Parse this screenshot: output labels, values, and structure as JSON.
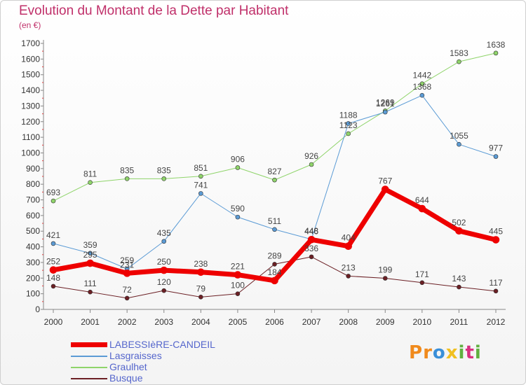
{
  "title": "Evolution du Montant de la Dette par Habitant",
  "subtitle": "(en €)",
  "logo": {
    "letters": [
      "P",
      "r",
      "o",
      "x",
      "i",
      "t",
      "i"
    ],
    "colors": [
      "#f08a1c",
      "#f08a1c",
      "#3a8fd8",
      "#f0c020",
      "#60b040",
      "#d83080",
      "#60b040"
    ]
  },
  "chart_data": {
    "type": "line",
    "x": [
      "2000",
      "2001",
      "2002",
      "2003",
      "2004",
      "2005",
      "2006",
      "2007",
      "2008",
      "2009",
      "2010",
      "2011",
      "2012"
    ],
    "ylim": [
      0,
      1700
    ],
    "yticks": [
      0,
      100,
      200,
      300,
      400,
      500,
      600,
      700,
      800,
      900,
      1000,
      1100,
      1200,
      1300,
      1400,
      1500,
      1600,
      1700
    ],
    "grid": false,
    "legend_position": "bottom-left",
    "series": [
      {
        "name": "Busque",
        "color": "#6b1f24",
        "width": 1,
        "values": [
          148,
          111,
          72,
          120,
          79,
          100,
          289,
          336,
          213,
          199,
          171,
          143,
          117
        ]
      },
      {
        "name": "Graulhet",
        "color": "#8fd46a",
        "width": 1,
        "values": [
          693,
          811,
          835,
          835,
          851,
          906,
          827,
          926,
          1123,
          1269,
          1442,
          1583,
          1638
        ]
      },
      {
        "name": "Lasgraisses",
        "color": "#5b9bd5",
        "width": 1,
        "values": [
          421,
          359,
          259,
          435,
          741,
          590,
          511,
          448,
          1188,
          1261,
          1368,
          1055,
          977
        ]
      },
      {
        "name": "LABESSIèRE-CANDEIL",
        "color": "#ee0000",
        "width": 7,
        "values": [
          252,
          295,
          231,
          250,
          238,
          221,
          184,
          446,
          404,
          767,
          644,
          502,
          445
        ]
      }
    ]
  }
}
